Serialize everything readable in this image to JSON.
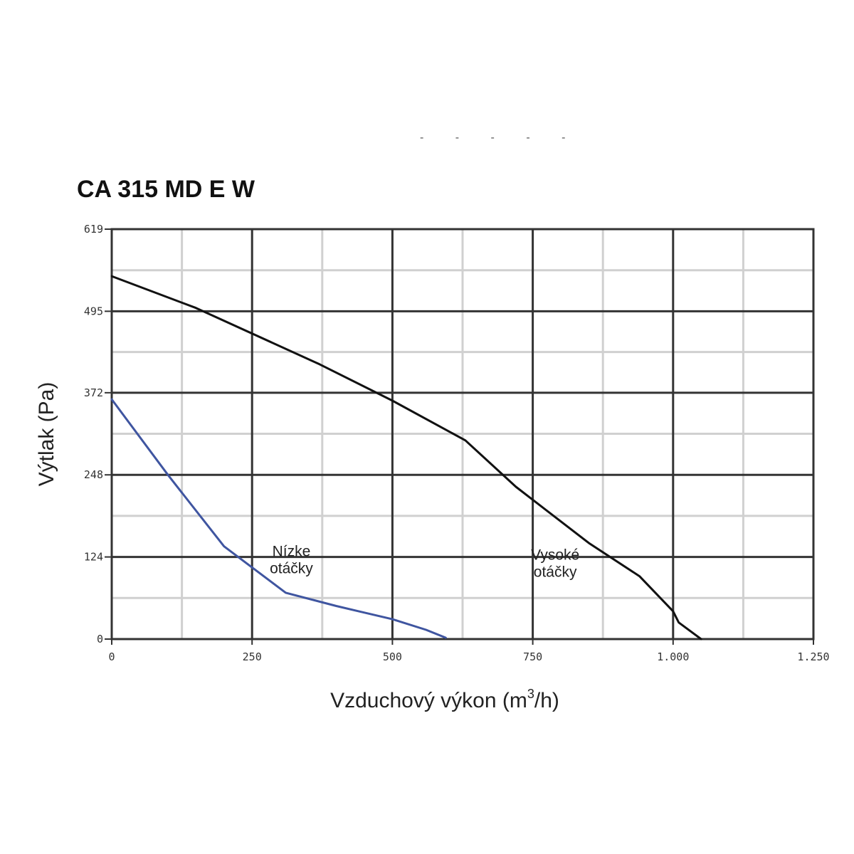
{
  "chart_data": {
    "type": "line",
    "title": "CA 315 MD E W",
    "ylabel": "Výtlak (Pa)",
    "xlabel_main": "Vzduchový výkon (m",
    "xlabel_sup": "3",
    "xlabel_end": "/h)",
    "xlim": [
      0,
      1250
    ],
    "ylim": [
      0,
      619
    ],
    "x_ticks": [
      0,
      250,
      500,
      750,
      1000,
      1250
    ],
    "x_tick_labels": [
      "0",
      "250",
      "500",
      "750",
      "1.000",
      "1.250"
    ],
    "y_ticks": [
      0,
      124,
      248,
      372,
      495,
      619
    ],
    "y_tick_labels": [
      "0",
      "124",
      "248",
      "372",
      "495",
      "619"
    ],
    "grid": true,
    "series": [
      {
        "name": "Nízke otáčky",
        "color": "#3f55a0",
        "x": [
          0,
          100,
          200,
          310,
          400,
          500,
          560,
          595
        ],
        "y": [
          362,
          248,
          140,
          70,
          50,
          30,
          14,
          2
        ]
      },
      {
        "name": "Vysoké otáčky",
        "color": "#111111",
        "x": [
          0,
          150,
          370,
          500,
          630,
          720,
          850,
          940,
          1000,
          1010,
          1050
        ],
        "y": [
          548,
          500,
          415,
          360,
          300,
          230,
          145,
          95,
          42,
          25,
          0
        ]
      }
    ],
    "annotations": [
      {
        "lines": [
          "Nízke",
          "otáčky"
        ],
        "x": 320,
        "y": 125,
        "series": 0
      },
      {
        "lines": [
          "Vysoké",
          "otáčky"
        ],
        "x": 790,
        "y": 120,
        "series": 1
      }
    ],
    "top_marks": "-  -  -  -  -"
  }
}
